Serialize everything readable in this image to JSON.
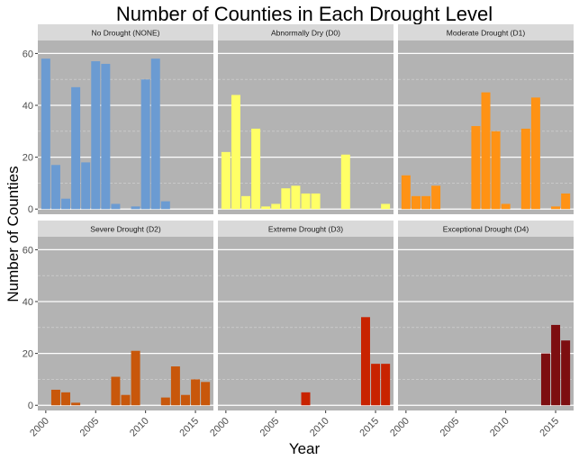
{
  "chart_data": {
    "type": "bar",
    "title": "Number of Counties in Each Drought Level",
    "xlabel": "Year",
    "ylabel": "Number of Counties",
    "ylim": [
      -2,
      65
    ],
    "y_ticks": [
      0,
      20,
      40,
      60
    ],
    "xlim": [
      1999.2,
      2016.8
    ],
    "x_ticks": [
      2000,
      2005,
      2010,
      2015
    ],
    "grid": true,
    "x": [
      2000,
      2001,
      2002,
      2003,
      2004,
      2005,
      2006,
      2007,
      2008,
      2009,
      2010,
      2011,
      2012,
      2013,
      2014,
      2015,
      2016
    ],
    "series": [
      {
        "name": "No Drought (NONE)",
        "color": "#6b9bd2",
        "values": [
          58,
          17,
          4,
          47,
          18,
          57,
          56,
          2,
          0,
          1,
          50,
          58,
          3,
          0,
          0,
          0,
          0
        ]
      },
      {
        "name": "Abnormally Dry (D0)",
        "color": "#ffff66",
        "values": [
          22,
          44,
          5,
          31,
          1,
          2,
          8,
          9,
          6,
          6,
          0,
          0,
          21,
          0,
          0,
          0,
          2
        ]
      },
      {
        "name": "Moderate Drought (D1)",
        "color": "#ff9214",
        "values": [
          13,
          5,
          5,
          9,
          0,
          0,
          0,
          32,
          45,
          30,
          2,
          0,
          31,
          43,
          0,
          1,
          6
        ]
      },
      {
        "name": "Severe Drought (D2)",
        "color": "#c8570b",
        "values": [
          0,
          6,
          5,
          1,
          0,
          0,
          0,
          11,
          4,
          21,
          0,
          0,
          3,
          15,
          4,
          10,
          9
        ]
      },
      {
        "name": "Extreme Drought (D3)",
        "color": "#c82300",
        "values": [
          0,
          0,
          0,
          0,
          0,
          0,
          0,
          0,
          5,
          0,
          0,
          0,
          0,
          0,
          34,
          16,
          16
        ]
      },
      {
        "name": "Exceptional Drought (D4)",
        "color": "#7d0e10",
        "values": [
          0,
          0,
          0,
          0,
          0,
          0,
          0,
          0,
          0,
          0,
          0,
          0,
          0,
          0,
          20,
          31,
          25
        ]
      }
    ]
  }
}
